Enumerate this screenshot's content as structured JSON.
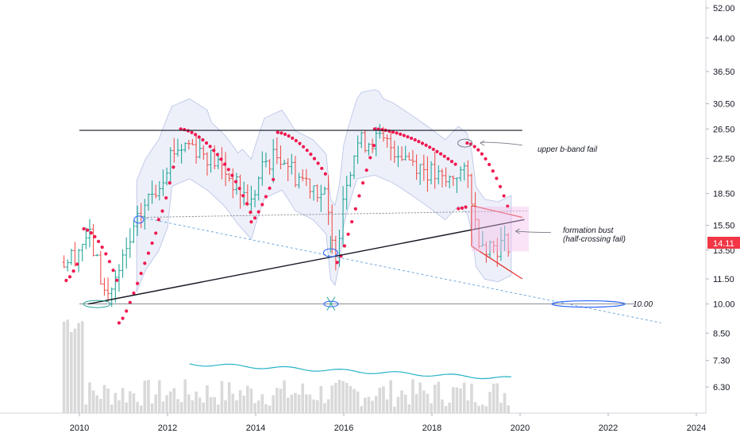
{
  "chart_data": {
    "type": "bar",
    "subtype": "ohlc-price-chart",
    "scale": "log",
    "x_ticks": [
      "2010",
      "2012",
      "2014",
      "2016",
      "2018",
      "2020",
      "2022",
      "2024"
    ],
    "y_ticks": [
      "52.00",
      "44.00",
      "36.50",
      "30.50",
      "26.50",
      "22.50",
      "18.50",
      "15.50",
      "13.50",
      "11.50",
      "10.00",
      "8.50",
      "7.30",
      "6.30"
    ],
    "last_price": "14.11",
    "price_badge_color": "#f23645",
    "annotations": {
      "upper_band_fail": "upper b-band fail",
      "formation_bust_line1": "formation bust",
      "formation_bust_line2": "(half-crossing fail)",
      "level_label": "10.00"
    },
    "colors": {
      "up_bar": "#26a69a",
      "down_bar": "#ef5350",
      "sar_dots": "#f0174f",
      "bollinger_fill": "#dfe3f4",
      "volume_bars": "#d9d9d9",
      "volume_ma": "#26b3c6",
      "trendline": "#131722",
      "dashed_support": "#6fa8dc",
      "pennant": "#e53935",
      "marker_blue": "#2962ff"
    },
    "grid": false
  }
}
